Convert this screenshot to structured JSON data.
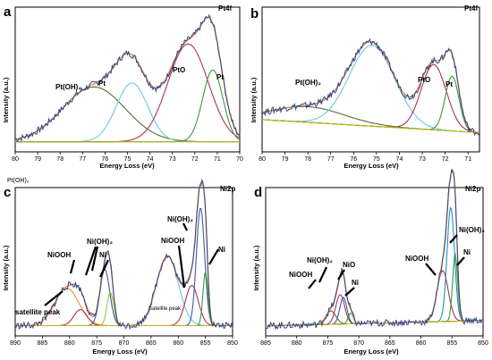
{
  "figure": {
    "loose_label": "Pt(OH)₂",
    "panels": [
      {
        "letter": "a",
        "spectrum": "Pt4f",
        "xlabel": "Energy Loss (eV)",
        "ylabel": "Intensity (a.u.)",
        "xlim": [
          80,
          70
        ],
        "ticks": [
          "80",
          "79",
          "78",
          "77",
          "76",
          "75",
          "74",
          "73",
          "72",
          "71",
          "70"
        ],
        "labels": [
          "Pt(OH)₂",
          "Pt",
          "PtO",
          "Pt"
        ]
      },
      {
        "letter": "b",
        "spectrum": "Pt4f",
        "xlabel": "Energy Loss (eV)",
        "ylabel": "Intensity (a.u.)",
        "xlim": [
          80,
          70.5
        ],
        "ticks": [
          "80",
          "79",
          "78",
          "77",
          "76",
          "75",
          "74",
          "73",
          "72",
          "71"
        ],
        "labels": [
          "Pt(OH)₂",
          "PtO",
          "Pt"
        ]
      },
      {
        "letter": "c",
        "spectrum": "Ni2p",
        "xlabel": "Energy Loss (eV)",
        "ylabel": "Intensity (a.u.)",
        "xlim": [
          890,
          850
        ],
        "ticks": [
          "890",
          "885",
          "880",
          "875",
          "870",
          "865",
          "860",
          "855",
          "850"
        ],
        "labels": [
          "NiOOH",
          "Ni(OH)₂",
          "Ni",
          "satellite peak",
          "NiOOH",
          "Ni(OH)₂",
          "Ni",
          "Satellite peak"
        ]
      },
      {
        "letter": "d",
        "spectrum": "Ni2p",
        "xlabel": "Energy Loss (eV)",
        "ylabel": "Intensity (a.u.)",
        "xlim": [
          885,
          850
        ],
        "ticks": [
          "885",
          "880",
          "875",
          "870",
          "865",
          "860",
          "855",
          "850"
        ],
        "labels": [
          "NiOOH",
          "Ni(OH)₂",
          "NiO",
          "Ni",
          "NiOOH",
          "Ni(OH)₂",
          "Ni"
        ]
      }
    ]
  },
  "chart_data": [
    {
      "type": "line",
      "title": "Pt4f",
      "xlabel": "Energy Loss (eV)",
      "ylabel": "Intensity (a.u.)",
      "xlim": [
        80,
        70
      ],
      "x_reversed": true,
      "baseline": 0.05,
      "components": [
        {
          "name": "Pt(OH)₂",
          "center": 76.5,
          "amplitude": 0.42,
          "width": 1.4,
          "color": "#556b2f"
        },
        {
          "name": "Pt",
          "center": 74.8,
          "amplitude": 0.45,
          "width": 0.7,
          "color": "#6ec6e8"
        },
        {
          "name": "PtO",
          "center": 72.3,
          "amplitude": 0.75,
          "width": 0.9,
          "color": "#b0305a"
        },
        {
          "name": "Pt",
          "center": 71.2,
          "amplitude": 0.55,
          "width": 0.45,
          "color": "#3a9a3a"
        }
      ],
      "envelope_color": "#f07a3c",
      "raw_color": "#2a4a8a"
    },
    {
      "type": "line",
      "title": "Pt4f",
      "xlabel": "Energy Loss (eV)",
      "ylabel": "Intensity (a.u.)",
      "xlim": [
        80,
        70.5
      ],
      "x_reversed": true,
      "baseline": 0.2,
      "components": [
        {
          "name": "Pt(OH)₂",
          "center": 78.0,
          "amplitude": 0.12,
          "width": 1.6,
          "color": "#556b2f"
        },
        {
          "name": "",
          "center": 75.2,
          "amplitude": 0.62,
          "width": 1.0,
          "color": "#6ec6e8"
        },
        {
          "name": "PtO",
          "center": 72.5,
          "amplitude": 0.5,
          "width": 0.55,
          "color": "#b0305a"
        },
        {
          "name": "Pt",
          "center": 71.7,
          "amplitude": 0.42,
          "width": 0.3,
          "color": "#3a9a3a"
        }
      ],
      "envelope_color": "#f07a3c",
      "raw_color": "#2a4a8a"
    },
    {
      "type": "line",
      "title": "Ni2p",
      "xlabel": "Energy Loss (eV)",
      "ylabel": "Intensity (a.u.)",
      "xlim": [
        890,
        850
      ],
      "x_reversed": true,
      "baseline": 0.05,
      "components": [
        {
          "name": "satellite peak",
          "center": 880.5,
          "amplitude": 0.28,
          "width": 2.2,
          "color": "#f0903c"
        },
        {
          "name": "NiOOH",
          "center": 878.0,
          "amplitude": 0.12,
          "width": 1.2,
          "color": "#b0305a"
        },
        {
          "name": "Ni(OH)₂",
          "center": 873.5,
          "amplitude": 0.42,
          "width": 0.9,
          "color": "#3a5aa8"
        },
        {
          "name": "Ni",
          "center": 872.5,
          "amplitude": 0.25,
          "width": 0.6,
          "color": "#9cc83a"
        },
        {
          "name": "Satellite peak",
          "center": 862.0,
          "amplitude": 0.52,
          "width": 2.0,
          "color": "#6ec6e8"
        },
        {
          "name": "NiOOH",
          "center": 857.5,
          "amplitude": 0.3,
          "width": 1.2,
          "color": "#b0305a"
        },
        {
          "name": "Ni(OH)₂",
          "center": 855.9,
          "amplitude": 0.88,
          "width": 0.75,
          "color": "#3a5aa8"
        },
        {
          "name": "Ni",
          "center": 855.0,
          "amplitude": 0.4,
          "width": 0.45,
          "color": "#3a9a3a"
        }
      ],
      "envelope_color": "#f07a3c",
      "raw_color": "#2a4a8a"
    },
    {
      "type": "line",
      "title": "Ni2p",
      "xlabel": "Energy Loss (eV)",
      "ylabel": "Intensity (a.u.)",
      "xlim": [
        885,
        850
      ],
      "x_reversed": true,
      "baseline": 0.08,
      "components": [
        {
          "name": "NiOOH",
          "center": 874.5,
          "amplitude": 0.1,
          "width": 0.8,
          "color": "#556b2f"
        },
        {
          "name": "Ni(OH)₂",
          "center": 873.0,
          "amplitude": 0.22,
          "width": 0.7,
          "color": "#b0305a"
        },
        {
          "name": "NiO",
          "center": 872.5,
          "amplitude": 0.2,
          "width": 0.55,
          "color": "#3a5aa8"
        },
        {
          "name": "Ni",
          "center": 871.3,
          "amplitude": 0.08,
          "width": 0.4,
          "color": "#3a9a3a"
        },
        {
          "name": "NiOOH",
          "center": 856.5,
          "amplitude": 0.38,
          "width": 0.9,
          "color": "#b0305a"
        },
        {
          "name": "Ni(OH)₂",
          "center": 855.2,
          "amplitude": 0.85,
          "width": 0.6,
          "color": "#1e8fbf"
        },
        {
          "name": "Ni",
          "center": 854.5,
          "amplitude": 0.5,
          "width": 0.4,
          "color": "#3a9a3a"
        }
      ],
      "envelope_color": "#f07a3c",
      "raw_color": "#2a4a8a"
    }
  ]
}
